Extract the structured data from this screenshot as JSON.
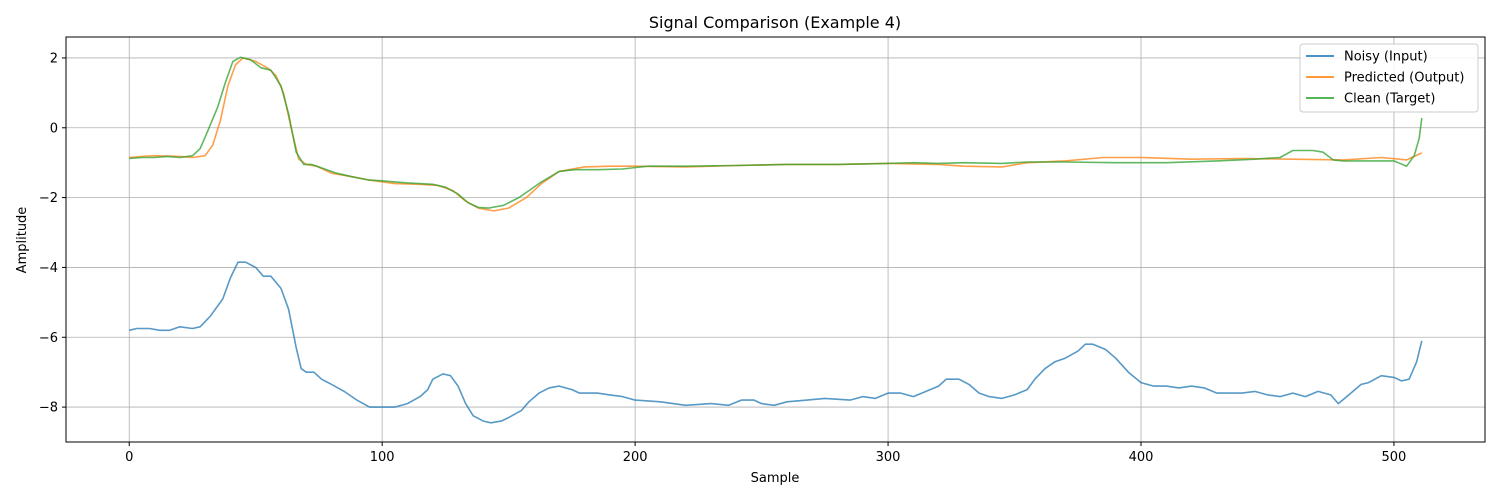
{
  "chart_data": {
    "type": "line",
    "title": "Signal Comparison (Example 4)",
    "xlabel": "Sample",
    "ylabel": "Amplitude",
    "xlim": [
      -25,
      536
    ],
    "ylim": [
      -9,
      2.6
    ],
    "xticks": [
      0,
      100,
      200,
      300,
      400,
      500
    ],
    "yticks": [
      2,
      0,
      -2,
      -4,
      -6,
      -8
    ],
    "ytick_labels": [
      "2",
      "0",
      "−2",
      "−4",
      "−6",
      "−8"
    ],
    "grid": true,
    "legend_position": "top-right",
    "series": [
      {
        "name": "Noisy (Input)",
        "color": "#1f77b4",
        "points": [
          [
            0,
            -5.8
          ],
          [
            3,
            -5.75
          ],
          [
            8,
            -5.75
          ],
          [
            12,
            -5.8
          ],
          [
            16,
            -5.8
          ],
          [
            20,
            -5.7
          ],
          [
            25,
            -5.75
          ],
          [
            28,
            -5.7
          ],
          [
            32,
            -5.4
          ],
          [
            37,
            -4.9
          ],
          [
            40,
            -4.3
          ],
          [
            43,
            -3.85
          ],
          [
            46,
            -3.85
          ],
          [
            50,
            -4.0
          ],
          [
            53,
            -4.25
          ],
          [
            56,
            -4.25
          ],
          [
            60,
            -4.6
          ],
          [
            63,
            -5.2
          ],
          [
            66,
            -6.3
          ],
          [
            68,
            -6.9
          ],
          [
            70,
            -7.0
          ],
          [
            73,
            -7.0
          ],
          [
            76,
            -7.2
          ],
          [
            80,
            -7.35
          ],
          [
            85,
            -7.55
          ],
          [
            90,
            -7.8
          ],
          [
            95,
            -8.0
          ],
          [
            100,
            -8.0
          ],
          [
            105,
            -8.0
          ],
          [
            110,
            -7.9
          ],
          [
            115,
            -7.7
          ],
          [
            118,
            -7.5
          ],
          [
            120,
            -7.2
          ],
          [
            124,
            -7.05
          ],
          [
            127,
            -7.1
          ],
          [
            130,
            -7.4
          ],
          [
            133,
            -7.9
          ],
          [
            136,
            -8.25
          ],
          [
            140,
            -8.4
          ],
          [
            143,
            -8.45
          ],
          [
            147,
            -8.4
          ],
          [
            150,
            -8.3
          ],
          [
            155,
            -8.1
          ],
          [
            158,
            -7.85
          ],
          [
            162,
            -7.6
          ],
          [
            166,
            -7.45
          ],
          [
            170,
            -7.4
          ],
          [
            175,
            -7.5
          ],
          [
            178,
            -7.6
          ],
          [
            185,
            -7.6
          ],
          [
            190,
            -7.65
          ],
          [
            195,
            -7.7
          ],
          [
            200,
            -7.8
          ],
          [
            210,
            -7.85
          ],
          [
            220,
            -7.95
          ],
          [
            230,
            -7.9
          ],
          [
            237,
            -7.95
          ],
          [
            242,
            -7.8
          ],
          [
            247,
            -7.8
          ],
          [
            250,
            -7.9
          ],
          [
            255,
            -7.95
          ],
          [
            260,
            -7.85
          ],
          [
            268,
            -7.8
          ],
          [
            275,
            -7.75
          ],
          [
            285,
            -7.8
          ],
          [
            290,
            -7.7
          ],
          [
            295,
            -7.75
          ],
          [
            300,
            -7.6
          ],
          [
            305,
            -7.6
          ],
          [
            310,
            -7.7
          ],
          [
            315,
            -7.55
          ],
          [
            320,
            -7.4
          ],
          [
            323,
            -7.2
          ],
          [
            328,
            -7.2
          ],
          [
            332,
            -7.35
          ],
          [
            336,
            -7.6
          ],
          [
            340,
            -7.7
          ],
          [
            345,
            -7.75
          ],
          [
            350,
            -7.65
          ],
          [
            355,
            -7.5
          ],
          [
            358,
            -7.2
          ],
          [
            362,
            -6.9
          ],
          [
            366,
            -6.7
          ],
          [
            370,
            -6.6
          ],
          [
            375,
            -6.4
          ],
          [
            378,
            -6.2
          ],
          [
            381,
            -6.2
          ],
          [
            386,
            -6.35
          ],
          [
            390,
            -6.6
          ],
          [
            395,
            -7.0
          ],
          [
            400,
            -7.3
          ],
          [
            405,
            -7.4
          ],
          [
            410,
            -7.4
          ],
          [
            415,
            -7.45
          ],
          [
            420,
            -7.4
          ],
          [
            425,
            -7.45
          ],
          [
            430,
            -7.6
          ],
          [
            435,
            -7.6
          ],
          [
            440,
            -7.6
          ],
          [
            445,
            -7.55
          ],
          [
            450,
            -7.65
          ],
          [
            455,
            -7.7
          ],
          [
            460,
            -7.6
          ],
          [
            465,
            -7.7
          ],
          [
            470,
            -7.55
          ],
          [
            475,
            -7.65
          ],
          [
            478,
            -7.9
          ],
          [
            483,
            -7.6
          ],
          [
            487,
            -7.35
          ],
          [
            490,
            -7.3
          ],
          [
            495,
            -7.1
          ],
          [
            500,
            -7.15
          ],
          [
            503,
            -7.25
          ],
          [
            506,
            -7.2
          ],
          [
            509,
            -6.7
          ],
          [
            511,
            -6.1
          ]
        ]
      },
      {
        "name": "Predicted (Output)",
        "color": "#ff7f0e",
        "points": [
          [
            0,
            -0.85
          ],
          [
            5,
            -0.82
          ],
          [
            10,
            -0.8
          ],
          [
            20,
            -0.82
          ],
          [
            25,
            -0.85
          ],
          [
            30,
            -0.8
          ],
          [
            33,
            -0.5
          ],
          [
            36,
            0.2
          ],
          [
            39,
            1.2
          ],
          [
            42,
            1.8
          ],
          [
            45,
            2.0
          ],
          [
            50,
            1.9
          ],
          [
            55,
            1.7
          ],
          [
            58,
            1.5
          ],
          [
            61,
            1.0
          ],
          [
            64,
            0.0
          ],
          [
            67,
            -0.9
          ],
          [
            70,
            -1.05
          ],
          [
            74,
            -1.1
          ],
          [
            80,
            -1.3
          ],
          [
            88,
            -1.4
          ],
          [
            95,
            -1.5
          ],
          [
            105,
            -1.6
          ],
          [
            115,
            -1.62
          ],
          [
            122,
            -1.65
          ],
          [
            128,
            -1.8
          ],
          [
            133,
            -2.1
          ],
          [
            138,
            -2.3
          ],
          [
            144,
            -2.38
          ],
          [
            150,
            -2.3
          ],
          [
            157,
            -2.0
          ],
          [
            163,
            -1.6
          ],
          [
            170,
            -1.25
          ],
          [
            180,
            -1.12
          ],
          [
            190,
            -1.1
          ],
          [
            200,
            -1.1
          ],
          [
            220,
            -1.12
          ],
          [
            240,
            -1.08
          ],
          [
            260,
            -1.05
          ],
          [
            280,
            -1.05
          ],
          [
            300,
            -1.02
          ],
          [
            320,
            -1.05
          ],
          [
            330,
            -1.1
          ],
          [
            345,
            -1.12
          ],
          [
            355,
            -1.0
          ],
          [
            370,
            -0.95
          ],
          [
            385,
            -0.85
          ],
          [
            400,
            -0.85
          ],
          [
            420,
            -0.9
          ],
          [
            440,
            -0.88
          ],
          [
            460,
            -0.9
          ],
          [
            480,
            -0.92
          ],
          [
            495,
            -0.85
          ],
          [
            505,
            -0.92
          ],
          [
            511,
            -0.72
          ]
        ]
      },
      {
        "name": "Clean (Target)",
        "color": "#2ca02c",
        "points": [
          [
            0,
            -0.88
          ],
          [
            5,
            -0.85
          ],
          [
            10,
            -0.85
          ],
          [
            15,
            -0.82
          ],
          [
            20,
            -0.85
          ],
          [
            25,
            -0.8
          ],
          [
            28,
            -0.6
          ],
          [
            31,
            -0.1
          ],
          [
            35,
            0.6
          ],
          [
            38,
            1.3
          ],
          [
            41,
            1.9
          ],
          [
            44,
            2.02
          ],
          [
            48,
            1.95
          ],
          [
            52,
            1.72
          ],
          [
            56,
            1.65
          ],
          [
            60,
            1.2
          ],
          [
            63,
            0.4
          ],
          [
            66,
            -0.7
          ],
          [
            69,
            -1.05
          ],
          [
            72,
            -1.05
          ],
          [
            76,
            -1.15
          ],
          [
            82,
            -1.3
          ],
          [
            88,
            -1.4
          ],
          [
            95,
            -1.5
          ],
          [
            100,
            -1.52
          ],
          [
            105,
            -1.55
          ],
          [
            110,
            -1.58
          ],
          [
            120,
            -1.62
          ],
          [
            125,
            -1.7
          ],
          [
            130,
            -1.9
          ],
          [
            134,
            -2.15
          ],
          [
            138,
            -2.28
          ],
          [
            142,
            -2.3
          ],
          [
            148,
            -2.22
          ],
          [
            154,
            -2.0
          ],
          [
            158,
            -1.8
          ],
          [
            163,
            -1.55
          ],
          [
            170,
            -1.25
          ],
          [
            176,
            -1.2
          ],
          [
            185,
            -1.2
          ],
          [
            195,
            -1.18
          ],
          [
            205,
            -1.1
          ],
          [
            220,
            -1.1
          ],
          [
            240,
            -1.08
          ],
          [
            260,
            -1.05
          ],
          [
            280,
            -1.05
          ],
          [
            300,
            -1.02
          ],
          [
            310,
            -1.0
          ],
          [
            320,
            -1.02
          ],
          [
            330,
            -1.0
          ],
          [
            345,
            -1.02
          ],
          [
            355,
            -0.98
          ],
          [
            370,
            -0.98
          ],
          [
            390,
            -1.0
          ],
          [
            410,
            -1.0
          ],
          [
            430,
            -0.95
          ],
          [
            445,
            -0.9
          ],
          [
            455,
            -0.85
          ],
          [
            460,
            -0.65
          ],
          [
            468,
            -0.65
          ],
          [
            472,
            -0.7
          ],
          [
            476,
            -0.92
          ],
          [
            480,
            -0.95
          ],
          [
            490,
            -0.95
          ],
          [
            500,
            -0.95
          ],
          [
            505,
            -1.1
          ],
          [
            508,
            -0.8
          ],
          [
            510,
            -0.3
          ],
          [
            511,
            0.28
          ]
        ]
      }
    ]
  }
}
